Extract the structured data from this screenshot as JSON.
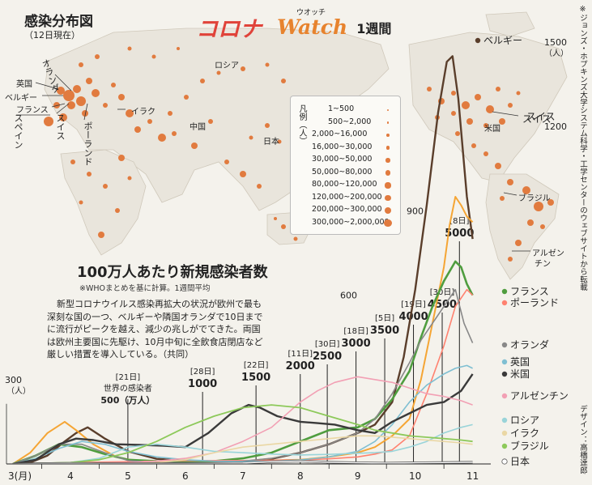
{
  "header": {
    "title_prefix": "コロナ",
    "title_mid": "Watch",
    "title_ruby": "ウオッチ",
    "title_suffix": "1週間",
    "map_title": "感染分布図",
    "map_date": "（12日現在）",
    "source_note": "※ジョンズ・ホプキンズ大学システム科学・工学センターのウェブサイトから転載",
    "design_credit": "デザイン：高橋達郎"
  },
  "map": {
    "legend_title": "凡例（人）",
    "legend_items": [
      "1~500",
      "500~2,000",
      "2,000~16,000",
      "16,000~30,000",
      "30,000~50,000",
      "50,000~80,000",
      "80,000~120,000",
      "120,000~200,000",
      "200,000~300,000",
      "300,000~2,000,000"
    ],
    "labels": {
      "russia": "ロシア",
      "china": "中国",
      "japan": "日本",
      "iraq": "イラク",
      "usa": "米国",
      "switzerland": "スイス",
      "brazil": "ブラジル",
      "argentina_a": "アルゼン",
      "argentina_b": "チン",
      "uk": "英国",
      "belgium": "ベルギー",
      "france": "フランス",
      "spain": "スペイン",
      "netherlands": "オランダ",
      "swiss_eu": "スイス",
      "poland": "ポーランド"
    }
  },
  "text_block": {
    "lines": [
      "新型コロナウイルス感染再拡大の状況が欧州で最も",
      "深刻な国の一つ、ベルギーや隣国オランダで10日まで",
      "に流行がピークを越え、減少の兆しがでてきた。両国",
      "は欧州主要国に先駆け、10月中旬に全飲食店閉店など",
      "厳しい措置を導入している。（共同）"
    ]
  },
  "annotations": [
    {
      "date": "21日",
      "value": "500",
      "extra_top": "世界の感染者",
      "extra_unit": "（万人）",
      "x": 5.0
    },
    {
      "date": "28日",
      "value": "1000",
      "x": 6.3
    },
    {
      "date": "22日",
      "value": "1500",
      "x": 7.23
    },
    {
      "date": "11日",
      "value": "2000",
      "x": 8.0
    },
    {
      "date": "30日",
      "value": "2500",
      "x": 8.47
    },
    {
      "date": "18日",
      "value": "3000",
      "x": 8.97
    },
    {
      "date": "5日",
      "value": "3500",
      "x": 9.47
    },
    {
      "date": "19日",
      "value": "4000",
      "x": 9.97
    },
    {
      "date": "30日",
      "value": "4500",
      "x": 10.47
    },
    {
      "date": "8日",
      "value": "5000",
      "x": 10.77
    }
  ],
  "chart_data": {
    "type": "line",
    "title": "100万人あたり新規感染者数",
    "subtitle": "※WHOまとめを基に計算。1週間平均",
    "ylabel": "（人）",
    "xlim": [
      3,
      11.4
    ],
    "ylim": [
      0,
      1500
    ],
    "y_ticks": [
      {
        "v": 300,
        "label": "300"
      },
      {
        "v": 600,
        "label": "600"
      },
      {
        "v": 900,
        "label": "900"
      },
      {
        "v": 1200,
        "label": "1200"
      },
      {
        "v": 1500,
        "label": "1500"
      }
    ],
    "x_ticks": [
      {
        "v": 3.12,
        "label": "3(月)"
      },
      {
        "v": 4,
        "label": "4"
      },
      {
        "v": 5,
        "label": "5"
      },
      {
        "v": 6,
        "label": "6"
      },
      {
        "v": 7,
        "label": "7"
      },
      {
        "v": 8,
        "label": "8"
      },
      {
        "v": 9,
        "label": "9"
      },
      {
        "v": 10,
        "label": "10"
      },
      {
        "v": 11,
        "label": "11"
      }
    ],
    "series": [
      {
        "name": "ベルギー",
        "color": "#5a3e2b",
        "width": 2.4,
        "x": [
          3,
          3.3,
          3.6,
          3.9,
          4.1,
          4.3,
          4.6,
          5,
          5.5,
          6,
          6.5,
          7,
          7.5,
          8,
          8.5,
          9,
          9.3,
          9.6,
          9.8,
          10,
          10.2,
          10.4,
          10.55,
          10.65,
          10.75,
          10.9,
          11
        ],
        "y": [
          0,
          5,
          30,
          80,
          110,
          130,
          90,
          45,
          18,
          12,
          8,
          8,
          18,
          40,
          70,
          110,
          140,
          220,
          380,
          620,
          920,
          1250,
          1430,
          1450,
          1300,
          950,
          800
        ]
      },
      {
        "name": "スイス",
        "color": "#f5a534",
        "width": 2.0,
        "x": [
          3,
          3.3,
          3.6,
          3.9,
          4.1,
          4.4,
          4.8,
          5.2,
          6,
          7,
          8,
          8.5,
          9,
          9.3,
          9.6,
          9.9,
          10.1,
          10.3,
          10.5,
          10.6,
          10.7,
          10.8,
          10.9,
          11
        ],
        "y": [
          0,
          40,
          110,
          150,
          120,
          70,
          25,
          8,
          5,
          10,
          15,
          25,
          40,
          60,
          100,
          160,
          300,
          500,
          700,
          850,
          950,
          920,
          880,
          860
        ]
      },
      {
        "name": "フランス",
        "color": "#4f9d3f",
        "width": 2.6,
        "x": [
          3,
          3.4,
          3.8,
          4.2,
          4.6,
          5,
          5.5,
          6,
          6.5,
          7,
          7.5,
          8,
          8.5,
          9,
          9.3,
          9.6,
          9.9,
          10.1,
          10.3,
          10.5,
          10.7,
          10.8,
          10.9,
          11
        ],
        "y": [
          0,
          30,
          70,
          60,
          35,
          15,
          10,
          8,
          10,
          20,
          40,
          80,
          120,
          130,
          160,
          230,
          330,
          450,
          560,
          650,
          720,
          700,
          640,
          600
        ]
      },
      {
        "name": "ポーランド",
        "color": "#ff8270",
        "width": 1.6,
        "x": [
          3,
          4,
          5,
          6,
          7,
          8,
          8.5,
          9,
          9.3,
          9.6,
          9.9,
          10.2,
          10.5,
          10.7,
          10.9,
          11
        ],
        "y": [
          0,
          5,
          8,
          12,
          12,
          14,
          18,
          25,
          35,
          50,
          100,
          250,
          420,
          560,
          620,
          600
        ]
      },
      {
        "name": "オランダ",
        "color": "#888888",
        "width": 1.6,
        "x": [
          3,
          3.4,
          3.8,
          4.2,
          4.6,
          5,
          5.5,
          6,
          6.5,
          7,
          7.5,
          8,
          8.5,
          9,
          9.3,
          9.6,
          9.9,
          10.1,
          10.3,
          10.5,
          10.7,
          10.85,
          11
        ],
        "y": [
          0,
          30,
          70,
          70,
          40,
          12,
          5,
          4,
          5,
          10,
          20,
          40,
          70,
          110,
          160,
          250,
          360,
          440,
          500,
          560,
          620,
          500,
          430
        ]
      },
      {
        "name": "英国",
        "color": "#7fbfd2",
        "width": 1.6,
        "x": [
          3,
          3.4,
          3.8,
          4.2,
          4.6,
          5,
          5.5,
          6,
          6.5,
          7,
          7.5,
          8,
          8.5,
          9,
          9.3,
          9.6,
          9.9,
          10.2,
          10.5,
          10.7,
          10.9,
          11
        ],
        "y": [
          0,
          20,
          55,
          80,
          70,
          45,
          25,
          15,
          10,
          9,
          10,
          14,
          25,
          45,
          80,
          140,
          220,
          280,
          320,
          340,
          350,
          340
        ]
      },
      {
        "name": "米国",
        "color": "#3a3a3a",
        "width": 2.4,
        "x": [
          3,
          3.4,
          3.8,
          4.1,
          4.4,
          4.8,
          5.2,
          5.6,
          6,
          6.4,
          6.8,
          7.1,
          7.3,
          7.6,
          8,
          8.3,
          8.6,
          9,
          9.3,
          9.6,
          9.9,
          10.2,
          10.5,
          10.8,
          11
        ],
        "y": [
          0,
          15,
          70,
          90,
          85,
          70,
          68,
          65,
          60,
          110,
          180,
          210,
          200,
          170,
          150,
          145,
          140,
          120,
          110,
          150,
          180,
          210,
          220,
          260,
          320
        ]
      },
      {
        "name": "アルゼンチン",
        "color": "#f2a0b4",
        "width": 1.6,
        "x": [
          3,
          4,
          5,
          5.5,
          6,
          6.5,
          7,
          7.5,
          8,
          8.3,
          8.6,
          9,
          9.3,
          9.6,
          9.9,
          10.2,
          10.5,
          10.8,
          11
        ],
        "y": [
          0,
          2,
          5,
          10,
          20,
          40,
          80,
          130,
          220,
          260,
          290,
          310,
          300,
          290,
          270,
          250,
          240,
          225,
          210
        ]
      },
      {
        "name": "ロシア",
        "color": "#99d4d9",
        "width": 1.6,
        "x": [
          3,
          4,
          4.5,
          5,
          5.5,
          6,
          6.5,
          7,
          7.5,
          8,
          8.5,
          9,
          9.3,
          9.6,
          9.9,
          10.2,
          10.5,
          10.8,
          11
        ],
        "y": [
          0,
          5,
          20,
          60,
          70,
          60,
          45,
          40,
          35,
          32,
          34,
          38,
          40,
          45,
          60,
          80,
          110,
          130,
          140
        ]
      },
      {
        "name": "イラク",
        "color": "#ead7a4",
        "width": 1.6,
        "x": [
          3,
          4,
          5,
          5.5,
          6,
          6.5,
          7,
          7.5,
          8,
          8.5,
          9,
          9.3,
          9.6,
          9.9,
          10.2,
          10.5,
          10.8,
          11
        ],
        "y": [
          0,
          1,
          2,
          5,
          15,
          40,
          60,
          70,
          80,
          90,
          100,
          100,
          95,
          90,
          85,
          80,
          75,
          70
        ]
      },
      {
        "name": "ブラジル",
        "color": "#8dc95a",
        "width": 1.8,
        "x": [
          3,
          4,
          4.5,
          5,
          5.5,
          6,
          6.5,
          7,
          7.5,
          8,
          8.5,
          9,
          9.3,
          9.6,
          9.9,
          10.2,
          10.5,
          10.8,
          11
        ],
        "y": [
          0,
          5,
          15,
          40,
          80,
          130,
          170,
          200,
          210,
          200,
          170,
          140,
          120,
          110,
          100,
          95,
          90,
          85,
          80
        ]
      },
      {
        "name": "日本",
        "color": "#ffffff",
        "width": 1.4,
        "x": [
          3,
          4,
          5,
          6,
          7,
          7.5,
          8,
          8.5,
          9,
          9.5,
          10,
          10.5,
          11
        ],
        "y": [
          0,
          2,
          1,
          1,
          3,
          8,
          10,
          6,
          4,
          3,
          4,
          5,
          6
        ]
      }
    ],
    "series_labels": [
      {
        "name": "ベルギー",
        "label": "ベルギー"
      },
      {
        "name": "スイス",
        "label": "スイス"
      },
      {
        "name": "フランス",
        "label": "フランス"
      },
      {
        "name": "ポーランド",
        "label": "ポーランド"
      },
      {
        "name": "オランダ",
        "label": "オランダ"
      },
      {
        "name": "英国",
        "label": "英国"
      },
      {
        "name": "米国",
        "label": "米国"
      },
      {
        "name": "アルゼンチン",
        "label": "アルゼンチン"
      },
      {
        "name": "ロシア",
        "label": "ロシア"
      },
      {
        "name": "イラク",
        "label": "イラク"
      },
      {
        "name": "ブラジル",
        "label": "ブラジル"
      },
      {
        "name": "日本",
        "label": "日本"
      }
    ]
  }
}
